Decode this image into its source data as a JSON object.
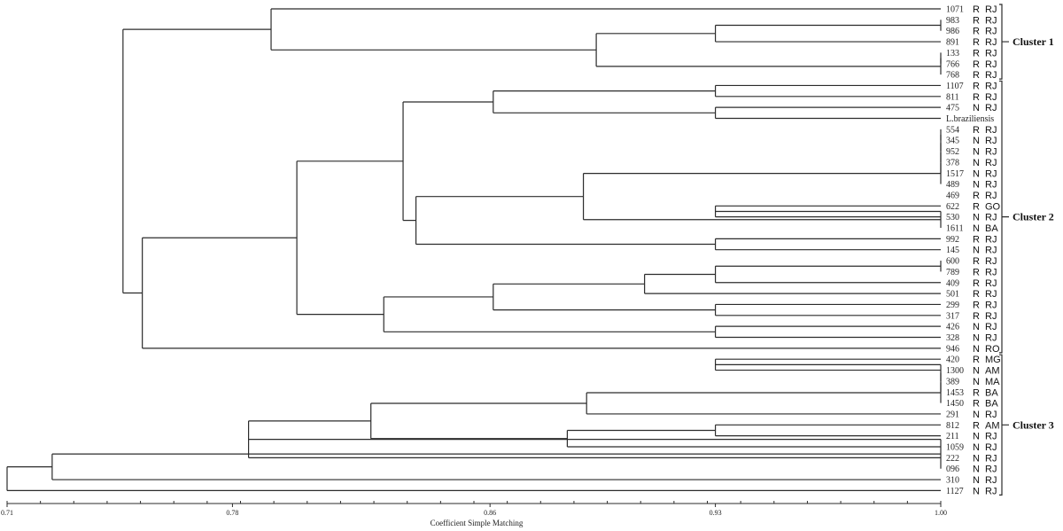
{
  "chart_data": {
    "type": "dendrogram",
    "xlabel": "Coefficient Simple Matching",
    "xlim": [
      0.71,
      1.0
    ],
    "tick_labels": [
      "0.71",
      "0.78",
      "0.86",
      "0.93",
      "1.00"
    ],
    "tick_values": [
      0.71,
      0.78,
      0.86,
      0.93,
      1.0
    ],
    "leaves": [
      {
        "id": "1071",
        "status": "R",
        "state": "RJ"
      },
      {
        "id": "983",
        "status": "R",
        "state": "RJ"
      },
      {
        "id": "986",
        "status": "R",
        "state": "RJ"
      },
      {
        "id": "891",
        "status": "R",
        "state": "RJ"
      },
      {
        "id": "133",
        "status": "R",
        "state": "RJ"
      },
      {
        "id": "766",
        "status": "R",
        "state": "RJ"
      },
      {
        "id": "768",
        "status": "R",
        "state": "RJ"
      },
      {
        "id": "1107",
        "status": "R",
        "state": "RJ"
      },
      {
        "id": "811",
        "status": "R",
        "state": "RJ"
      },
      {
        "id": "475",
        "status": "N",
        "state": "RJ"
      },
      {
        "id": "L.braziliensis",
        "status": "",
        "state": ""
      },
      {
        "id": "554",
        "status": "R",
        "state": "RJ"
      },
      {
        "id": "345",
        "status": "N",
        "state": "RJ"
      },
      {
        "id": "952",
        "status": "N",
        "state": "RJ"
      },
      {
        "id": "378",
        "status": "N",
        "state": "RJ"
      },
      {
        "id": "1517",
        "status": "N",
        "state": "RJ"
      },
      {
        "id": "489",
        "status": "N",
        "state": "RJ"
      },
      {
        "id": "469",
        "status": "R",
        "state": "RJ"
      },
      {
        "id": "622",
        "status": "R",
        "state": "GO"
      },
      {
        "id": "530",
        "status": "N",
        "state": "RJ"
      },
      {
        "id": "1611",
        "status": "N",
        "state": "BA"
      },
      {
        "id": "992",
        "status": "R",
        "state": "RJ"
      },
      {
        "id": "145",
        "status": "N",
        "state": "RJ"
      },
      {
        "id": "600",
        "status": "R",
        "state": "RJ"
      },
      {
        "id": "789",
        "status": "R",
        "state": "RJ"
      },
      {
        "id": "409",
        "status": "R",
        "state": "RJ"
      },
      {
        "id": "501",
        "status": "R",
        "state": "RJ"
      },
      {
        "id": "299",
        "status": "R",
        "state": "RJ"
      },
      {
        "id": "317",
        "status": "R",
        "state": "RJ"
      },
      {
        "id": "426",
        "status": "N",
        "state": "RJ"
      },
      {
        "id": "328",
        "status": "N",
        "state": "RJ"
      },
      {
        "id": "946",
        "status": "N",
        "state": "RO"
      },
      {
        "id": "420",
        "status": "R",
        "state": "MG"
      },
      {
        "id": "1300",
        "status": "N",
        "state": "AM"
      },
      {
        "id": "389",
        "status": "N",
        "state": "MA"
      },
      {
        "id": "1453",
        "status": "R",
        "state": "BA"
      },
      {
        "id": "1450",
        "status": "R",
        "state": "BA"
      },
      {
        "id": "291",
        "status": "N",
        "state": "RJ"
      },
      {
        "id": "812",
        "status": "R",
        "state": "AM"
      },
      {
        "id": "211",
        "status": "N",
        "state": "RJ"
      },
      {
        "id": "1059",
        "status": "N",
        "state": "RJ"
      },
      {
        "id": "222",
        "status": "N",
        "state": "RJ"
      },
      {
        "id": "096",
        "status": "N",
        "state": "RJ"
      },
      {
        "id": "310",
        "status": "N",
        "state": "RJ"
      },
      {
        "id": "1127",
        "status": "N",
        "state": "RJ"
      }
    ],
    "merges": [
      [
        1,
        2,
        1.0
      ],
      [
        2,
        3,
        0.93
      ],
      [
        3,
        4,
        0.93
      ],
      [
        4,
        5,
        0.895
      ],
      [
        5,
        6,
        0.883
      ],
      [
        6,
        7,
        0.883
      ],
      [
        0,
        1,
        0.792
      ],
      [
        7,
        8,
        0.93
      ],
      [
        8,
        9,
        0.861
      ],
      [
        9,
        10,
        0.93
      ],
      [
        11,
        12,
        1.0
      ],
      [
        12,
        13,
        1.0
      ],
      [
        13,
        14,
        1.0
      ],
      [
        14,
        15,
        1.0
      ],
      [
        15,
        16,
        1.0
      ],
      [
        16,
        17,
        0.93
      ],
      [
        18,
        19,
        0.93
      ],
      [
        19,
        20,
        1.0
      ],
      [
        17,
        18,
        0.89
      ],
      [
        21,
        22,
        0.93
      ],
      [
        20,
        21,
        0.84
      ],
      [
        10,
        11,
        0.834
      ],
      [
        23,
        24,
        1.0
      ],
      [
        24,
        25,
        0.93
      ],
      [
        25,
        26,
        0.908
      ],
      [
        27,
        28,
        0.93
      ],
      [
        26,
        27,
        0.861
      ],
      [
        29,
        30,
        0.93
      ],
      [
        28,
        29,
        0.829
      ],
      [
        22,
        23,
        0.8
      ],
      [
        30,
        31,
        0.752
      ],
      [
        7,
        8,
        0.747
      ],
      [
        6,
        7,
        0.747
      ],
      [
        32,
        33,
        0.93
      ],
      [
        33,
        34,
        1.0
      ],
      [
        34,
        35,
        1.0
      ],
      [
        35,
        36,
        0.908
      ],
      [
        36,
        37,
        0.89
      ],
      [
        38,
        39,
        0.93
      ],
      [
        39,
        40,
        0.884
      ],
      [
        37,
        38,
        0.823
      ],
      [
        40,
        41,
        0.785
      ],
      [
        41,
        42,
        1.0
      ],
      [
        42,
        43,
        0.751
      ],
      [
        43,
        44,
        0.724
      ],
      [
        31,
        32,
        0.71
      ]
    ],
    "clusters": [
      {
        "label": "Cluster 1",
        "first": 0,
        "last": 6
      },
      {
        "label": "Cluster 2",
        "first": 7,
        "last": 31
      },
      {
        "label": "Cluster 3",
        "first": 32,
        "last": 44
      }
    ]
  }
}
